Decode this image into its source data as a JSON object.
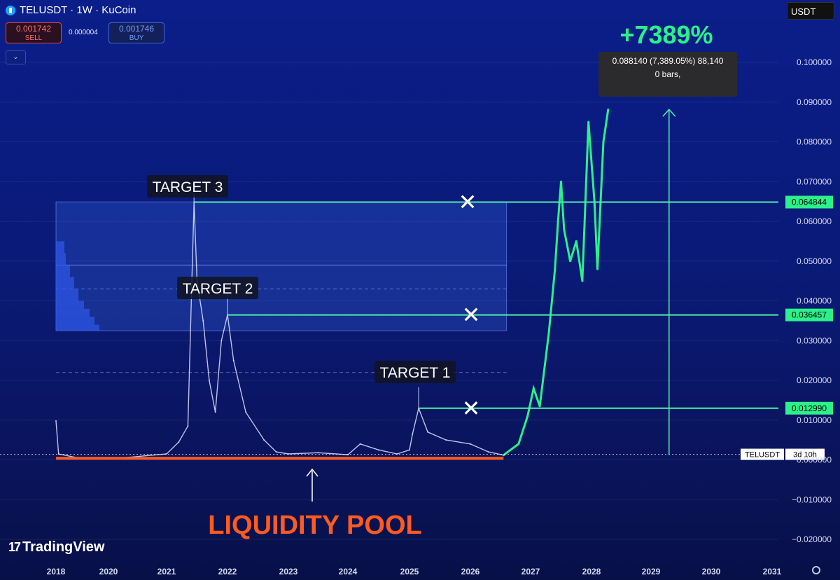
{
  "header": {
    "symbol_title": "TELUSDT · 1W · KuCoin",
    "logo_icon": "telcoin-logo-icon"
  },
  "trade": {
    "sell_price": "0.001742",
    "sell_label": "SELL",
    "spread": "0.000004",
    "buy_price": "0.001746",
    "buy_label": "BUY",
    "collapse_icon": "chevron-down-icon"
  },
  "currency_select": "USDT",
  "branding": {
    "text": "TradingView",
    "icon": "tradingview-logo-icon"
  },
  "settings_icon": "gear-icon",
  "colors": {
    "history_candles": "#dfe3ff",
    "projection": "#2cf08a",
    "target_lines": "#4df0a8",
    "liquidity": "#ff5a1f",
    "gain_text": "#2cf08a",
    "box_fill": "#3a6ae8"
  },
  "chart_data": {
    "type": "line",
    "title": "TELUSDT · 1W · KuCoin",
    "xlabel": "",
    "ylabel": "",
    "x_ticks": [
      "2018",
      "2020",
      "2021",
      "2022",
      "2023",
      "2024",
      "2025",
      "2026",
      "2027",
      "2028",
      "2029",
      "2030",
      "2031"
    ],
    "y_ticks": [
      "0.100000",
      "0.090000",
      "0.080000",
      "0.070000",
      "0.060000",
      "0.050000",
      "0.040000",
      "0.030000",
      "0.020000",
      "0.010000",
      "0.000000",
      "−0.010000",
      "−0.020000"
    ],
    "ylim": [
      -0.022,
      0.108
    ],
    "grid": true,
    "series": [
      {
        "kind": "historical",
        "points": [
          {
            "x": 2018.0,
            "y": 0.0098
          },
          {
            "x": 2018.1,
            "y": 0.0015
          },
          {
            "x": 2019.0,
            "y": 0.0003
          },
          {
            "x": 2020.0,
            "y": 0.0002
          },
          {
            "x": 2021.0,
            "y": 0.0015
          },
          {
            "x": 2021.2,
            "y": 0.0045
          },
          {
            "x": 2021.35,
            "y": 0.0085
          },
          {
            "x": 2021.45,
            "y": 0.0649
          },
          {
            "x": 2021.5,
            "y": 0.045
          },
          {
            "x": 2021.6,
            "y": 0.035
          },
          {
            "x": 2021.7,
            "y": 0.02
          },
          {
            "x": 2021.8,
            "y": 0.012
          },
          {
            "x": 2021.9,
            "y": 0.03
          },
          {
            "x": 2022.0,
            "y": 0.0365
          },
          {
            "x": 2022.1,
            "y": 0.025
          },
          {
            "x": 2022.3,
            "y": 0.012
          },
          {
            "x": 2022.6,
            "y": 0.005
          },
          {
            "x": 2022.8,
            "y": 0.002
          },
          {
            "x": 2023.0,
            "y": 0.0015
          },
          {
            "x": 2023.5,
            "y": 0.0018
          },
          {
            "x": 2024.0,
            "y": 0.0013
          },
          {
            "x": 2024.2,
            "y": 0.004
          },
          {
            "x": 2024.5,
            "y": 0.0025
          },
          {
            "x": 2024.8,
            "y": 0.0015
          },
          {
            "x": 2025.0,
            "y": 0.0025
          },
          {
            "x": 2025.05,
            "y": 0.0065
          },
          {
            "x": 2025.15,
            "y": 0.013
          },
          {
            "x": 2025.3,
            "y": 0.007
          },
          {
            "x": 2025.6,
            "y": 0.005
          },
          {
            "x": 2026.0,
            "y": 0.004
          },
          {
            "x": 2026.3,
            "y": 0.002
          },
          {
            "x": 2026.55,
            "y": 0.0012
          }
        ]
      },
      {
        "kind": "projection",
        "points": [
          {
            "x": 2026.55,
            "y": 0.0012
          },
          {
            "x": 2026.8,
            "y": 0.004
          },
          {
            "x": 2026.95,
            "y": 0.011
          },
          {
            "x": 2027.05,
            "y": 0.018
          },
          {
            "x": 2027.15,
            "y": 0.0135
          },
          {
            "x": 2027.3,
            "y": 0.032
          },
          {
            "x": 2027.4,
            "y": 0.048
          },
          {
            "x": 2027.45,
            "y": 0.06
          },
          {
            "x": 2027.5,
            "y": 0.07
          },
          {
            "x": 2027.55,
            "y": 0.058
          },
          {
            "x": 2027.65,
            "y": 0.05
          },
          {
            "x": 2027.75,
            "y": 0.055
          },
          {
            "x": 2027.85,
            "y": 0.045
          },
          {
            "x": 2027.95,
            "y": 0.085
          },
          {
            "x": 2028.05,
            "y": 0.065
          },
          {
            "x": 2028.1,
            "y": 0.048
          },
          {
            "x": 2028.2,
            "y": 0.08
          },
          {
            "x": 2028.28,
            "y": 0.0881
          }
        ]
      }
    ],
    "targets": [
      {
        "label": "TARGET 3",
        "value": 0.064844,
        "price_label": "0.064844",
        "start_x": 2021.45,
        "hit_mark": "✕"
      },
      {
        "label": "TARGET 2",
        "value": 0.036457,
        "price_label": "0.036457",
        "start_x": 2022.0,
        "hit_mark": "✕"
      },
      {
        "label": "TARGET 1",
        "value": 0.01299,
        "price_label": "0.012990",
        "start_x": 2025.15,
        "hit_mark": "✕"
      }
    ],
    "current_price_tag": {
      "symbol": "TELUSDT",
      "countdown": "3d 10h",
      "value": 0.0014
    },
    "liquidity_pool": {
      "label": "LIQUIDITY POOL",
      "value": 0.0004,
      "x_from": 2018.0,
      "x_to": 2026.55
    },
    "measure": {
      "gain_label": "+7389%",
      "tooltip_line1": "0.088140 (7,389.05%) 88,140",
      "tooltip_line2": "0 bars,",
      "from": 0.0012,
      "to": 0.08814,
      "x": 2029.3
    },
    "range_box": {
      "x_from": 2018.0,
      "x_to": 2026.6,
      "y_from": 0.0325,
      "y_to": 0.0649
    },
    "volume_profile_levels": [
      0.0325,
      0.034,
      0.036,
      0.038,
      0.04,
      0.043,
      0.046,
      0.049,
      0.052,
      0.055
    ]
  }
}
